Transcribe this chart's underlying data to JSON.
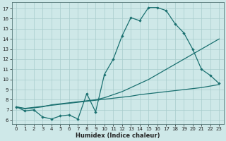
{
  "xlabel": "Humidex (Indice chaleur)",
  "bg_color": "#cee8e8",
  "line_color": "#1a7070",
  "grid_color": "#a8cccc",
  "xlim": [
    -0.5,
    23.5
  ],
  "ylim": [
    5.6,
    17.6
  ],
  "xticks": [
    0,
    1,
    2,
    3,
    4,
    5,
    6,
    7,
    8,
    9,
    10,
    11,
    12,
    13,
    14,
    15,
    16,
    17,
    18,
    19,
    20,
    21,
    22,
    23
  ],
  "yticks": [
    6,
    7,
    8,
    9,
    10,
    11,
    12,
    13,
    14,
    15,
    16,
    17
  ],
  "line1_x": [
    0,
    1,
    2,
    3,
    4,
    5,
    6,
    7,
    8,
    9,
    10,
    11,
    12,
    13,
    14,
    15,
    16,
    17,
    18,
    19,
    20,
    21,
    22,
    23
  ],
  "line1_y": [
    7.3,
    6.9,
    7.0,
    6.3,
    6.1,
    6.4,
    6.5,
    6.1,
    8.6,
    6.8,
    10.5,
    12.0,
    14.3,
    16.1,
    15.8,
    17.1,
    17.1,
    16.8,
    15.5,
    14.6,
    13.0,
    11.0,
    10.4,
    9.6
  ],
  "line2_x": [
    0,
    1,
    2,
    3,
    4,
    5,
    6,
    7,
    8,
    9,
    10,
    11,
    12,
    13,
    14,
    15,
    16,
    17,
    18,
    19,
    20,
    21,
    22,
    23
  ],
  "line2_y": [
    7.3,
    7.1,
    7.2,
    7.3,
    7.5,
    7.6,
    7.7,
    7.8,
    7.9,
    8.0,
    8.2,
    8.5,
    8.8,
    9.2,
    9.6,
    10.0,
    10.5,
    11.0,
    11.5,
    12.0,
    12.5,
    13.0,
    13.5,
    14.0
  ],
  "line3_x": [
    0,
    1,
    2,
    3,
    4,
    5,
    6,
    7,
    8,
    9,
    10,
    11,
    12,
    13,
    14,
    15,
    16,
    17,
    18,
    19,
    20,
    21,
    22,
    23
  ],
  "line3_y": [
    7.3,
    7.15,
    7.25,
    7.35,
    7.45,
    7.55,
    7.65,
    7.75,
    7.85,
    7.95,
    8.05,
    8.15,
    8.25,
    8.35,
    8.5,
    8.6,
    8.7,
    8.8,
    8.9,
    9.0,
    9.1,
    9.2,
    9.35,
    9.5
  ]
}
